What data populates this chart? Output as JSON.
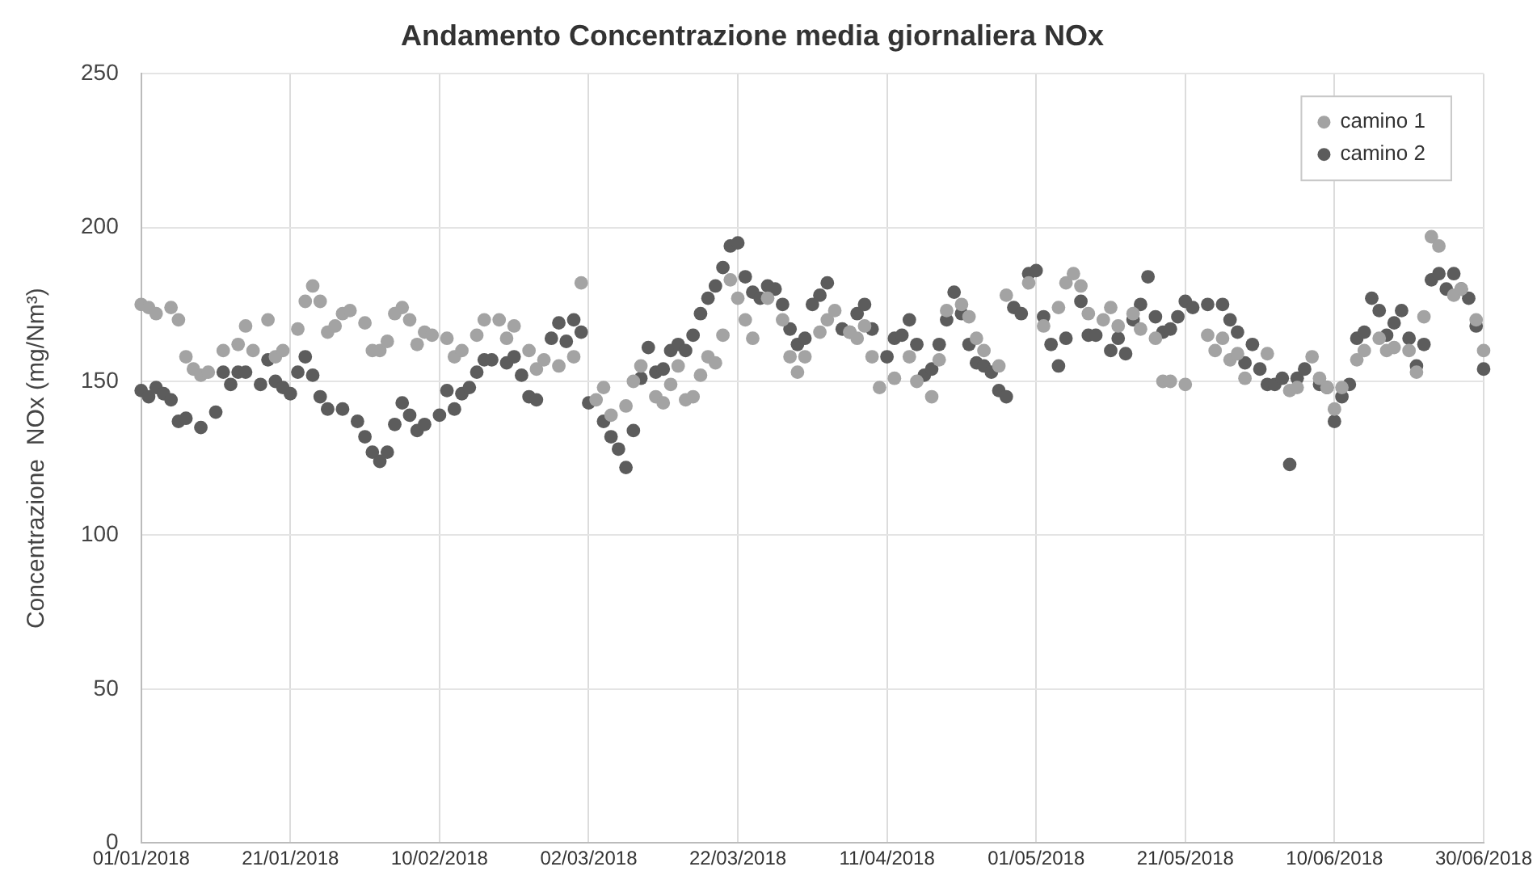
{
  "chart_data": {
    "type": "scatter",
    "title": "Andamento Concentrazione media giornaliera NOx",
    "ylabel": "Concentrazione  NOx (mg/Nm³)",
    "marker": "circle",
    "grid": true,
    "legend": "top right",
    "xlim": [
      "2018-01-01",
      "2018-06-30"
    ],
    "xticks": [
      {
        "value": "2018-01-01",
        "label": "01/01/2018"
      },
      {
        "value": "2018-01-21",
        "label": "21/01/2018"
      },
      {
        "value": "2018-02-10",
        "label": "10/02/2018"
      },
      {
        "value": "2018-03-02",
        "label": "02/03/2018"
      },
      {
        "value": "2018-03-22",
        "label": "22/03/2018"
      },
      {
        "value": "2018-04-11",
        "label": "11/04/2018"
      },
      {
        "value": "2018-05-01",
        "label": "01/05/2018"
      },
      {
        "value": "2018-05-21",
        "label": "21/05/2018"
      },
      {
        "value": "2018-06-10",
        "label": "10/06/2018"
      },
      {
        "value": "2018-06-30",
        "label": "30/06/2018"
      }
    ],
    "ylim": [
      0,
      250
    ],
    "yticks": [
      0,
      50,
      100,
      150,
      200,
      250
    ],
    "series": [
      {
        "name": "camino 1",
        "color": "#a3a3a3",
        "x": [
          "2018-01-01",
          "2018-01-02",
          "2018-01-03",
          "2018-01-05",
          "2018-01-06",
          "2018-01-07",
          "2018-01-08",
          "2018-01-09",
          "2018-01-10",
          "2018-01-12",
          "2018-01-14",
          "2018-01-15",
          "2018-01-16",
          "2018-01-18",
          "2018-01-19",
          "2018-01-20",
          "2018-01-22",
          "2018-01-23",
          "2018-01-24",
          "2018-01-25",
          "2018-01-26",
          "2018-01-27",
          "2018-01-28",
          "2018-01-29",
          "2018-01-31",
          "2018-02-01",
          "2018-02-02",
          "2018-02-03",
          "2018-02-04",
          "2018-02-05",
          "2018-02-06",
          "2018-02-07",
          "2018-02-08",
          "2018-02-09",
          "2018-02-11",
          "2018-02-12",
          "2018-02-13",
          "2018-02-15",
          "2018-02-16",
          "2018-02-18",
          "2018-02-19",
          "2018-02-20",
          "2018-02-22",
          "2018-02-23",
          "2018-02-24",
          "2018-02-26",
          "2018-02-28",
          "2018-03-01",
          "2018-03-03",
          "2018-03-04",
          "2018-03-05",
          "2018-03-07",
          "2018-03-08",
          "2018-03-09",
          "2018-03-11",
          "2018-03-12",
          "2018-03-13",
          "2018-03-14",
          "2018-03-15",
          "2018-03-16",
          "2018-03-17",
          "2018-03-18",
          "2018-03-19",
          "2018-03-20",
          "2018-03-21",
          "2018-03-22",
          "2018-03-23",
          "2018-03-24",
          "2018-03-26",
          "2018-03-28",
          "2018-03-29",
          "2018-03-30",
          "2018-03-31",
          "2018-04-02",
          "2018-04-03",
          "2018-04-04",
          "2018-04-06",
          "2018-04-07",
          "2018-04-08",
          "2018-04-09",
          "2018-04-10",
          "2018-04-12",
          "2018-04-14",
          "2018-04-15",
          "2018-04-17",
          "2018-04-18",
          "2018-04-19",
          "2018-04-21",
          "2018-04-22",
          "2018-04-23",
          "2018-04-24",
          "2018-04-26",
          "2018-04-27",
          "2018-04-30",
          "2018-05-02",
          "2018-05-04",
          "2018-05-05",
          "2018-05-06",
          "2018-05-07",
          "2018-05-08",
          "2018-05-10",
          "2018-05-11",
          "2018-05-12",
          "2018-05-14",
          "2018-05-15",
          "2018-05-17",
          "2018-05-18",
          "2018-05-19",
          "2018-05-21",
          "2018-05-24",
          "2018-05-25",
          "2018-05-26",
          "2018-05-27",
          "2018-05-28",
          "2018-05-29",
          "2018-06-01",
          "2018-06-04",
          "2018-06-05",
          "2018-06-07",
          "2018-06-08",
          "2018-06-09",
          "2018-06-10",
          "2018-06-11",
          "2018-06-13",
          "2018-06-14",
          "2018-06-16",
          "2018-06-17",
          "2018-06-18",
          "2018-06-20",
          "2018-06-21",
          "2018-06-22",
          "2018-06-23",
          "2018-06-24",
          "2018-06-26",
          "2018-06-27",
          "2018-06-29",
          "2018-06-30"
        ],
        "values": [
          175,
          174,
          172,
          174,
          170,
          158,
          154,
          152,
          153,
          160,
          162,
          168,
          160,
          170,
          158,
          160,
          167,
          176,
          181,
          176,
          166,
          168,
          172,
          173,
          169,
          160,
          160,
          163,
          172,
          174,
          170,
          162,
          166,
          165,
          164,
          158,
          160,
          165,
          170,
          170,
          164,
          168,
          160,
          154,
          157,
          155,
          158,
          182,
          144,
          148,
          139,
          142,
          150,
          155,
          145,
          143,
          149,
          155,
          144,
          145,
          152,
          158,
          156,
          165,
          183,
          177,
          170,
          164,
          177,
          170,
          158,
          153,
          158,
          166,
          170,
          173,
          166,
          164,
          168,
          158,
          148,
          151,
          158,
          150,
          145,
          157,
          173,
          175,
          171,
          164,
          160,
          155,
          178,
          182,
          168,
          174,
          182,
          185,
          181,
          172,
          170,
          174,
          168,
          172,
          167,
          164,
          150,
          150,
          149,
          165,
          160,
          164,
          157,
          159,
          151,
          159,
          147,
          148,
          158,
          151,
          148,
          141,
          148,
          157,
          160,
          164,
          160,
          161,
          160,
          153,
          171,
          197,
          194,
          178,
          180,
          170,
          160
        ]
      },
      {
        "name": "camino 2",
        "color": "#5c5c5c",
        "x": [
          "2018-01-01",
          "2018-01-02",
          "2018-01-03",
          "2018-01-04",
          "2018-01-05",
          "2018-01-06",
          "2018-01-07",
          "2018-01-09",
          "2018-01-11",
          "2018-01-12",
          "2018-01-13",
          "2018-01-14",
          "2018-01-15",
          "2018-01-17",
          "2018-01-18",
          "2018-01-19",
          "2018-01-20",
          "2018-01-21",
          "2018-01-22",
          "2018-01-23",
          "2018-01-24",
          "2018-01-25",
          "2018-01-26",
          "2018-01-28",
          "2018-01-30",
          "2018-01-31",
          "2018-02-01",
          "2018-02-02",
          "2018-02-03",
          "2018-02-04",
          "2018-02-05",
          "2018-02-06",
          "2018-02-07",
          "2018-02-08",
          "2018-02-10",
          "2018-02-11",
          "2018-02-12",
          "2018-02-13",
          "2018-02-14",
          "2018-02-15",
          "2018-02-16",
          "2018-02-17",
          "2018-02-19",
          "2018-02-20",
          "2018-02-21",
          "2018-02-22",
          "2018-02-23",
          "2018-02-25",
          "2018-02-26",
          "2018-02-27",
          "2018-02-28",
          "2018-03-01",
          "2018-03-02",
          "2018-03-04",
          "2018-03-05",
          "2018-03-06",
          "2018-03-07",
          "2018-03-08",
          "2018-03-09",
          "2018-03-10",
          "2018-03-11",
          "2018-03-12",
          "2018-03-13",
          "2018-03-14",
          "2018-03-15",
          "2018-03-16",
          "2018-03-17",
          "2018-03-18",
          "2018-03-19",
          "2018-03-20",
          "2018-03-21",
          "2018-03-22",
          "2018-03-23",
          "2018-03-24",
          "2018-03-25",
          "2018-03-26",
          "2018-03-27",
          "2018-03-28",
          "2018-03-29",
          "2018-03-30",
          "2018-03-31",
          "2018-04-01",
          "2018-04-02",
          "2018-04-03",
          "2018-04-05",
          "2018-04-06",
          "2018-04-07",
          "2018-04-08",
          "2018-04-09",
          "2018-04-11",
          "2018-04-12",
          "2018-04-13",
          "2018-04-14",
          "2018-04-15",
          "2018-04-16",
          "2018-04-17",
          "2018-04-18",
          "2018-04-19",
          "2018-04-20",
          "2018-04-21",
          "2018-04-22",
          "2018-04-23",
          "2018-04-24",
          "2018-04-25",
          "2018-04-26",
          "2018-04-27",
          "2018-04-28",
          "2018-04-29",
          "2018-04-30",
          "2018-05-01",
          "2018-05-02",
          "2018-05-03",
          "2018-05-04",
          "2018-05-05",
          "2018-05-07",
          "2018-05-08",
          "2018-05-09",
          "2018-05-11",
          "2018-05-12",
          "2018-05-13",
          "2018-05-14",
          "2018-05-15",
          "2018-05-16",
          "2018-05-17",
          "2018-05-18",
          "2018-05-19",
          "2018-05-20",
          "2018-05-21",
          "2018-05-22",
          "2018-05-24",
          "2018-05-26",
          "2018-05-27",
          "2018-05-28",
          "2018-05-29",
          "2018-05-30",
          "2018-05-31",
          "2018-06-01",
          "2018-06-02",
          "2018-06-03",
          "2018-06-04",
          "2018-06-05",
          "2018-06-06",
          "2018-06-08",
          "2018-06-09",
          "2018-06-10",
          "2018-06-11",
          "2018-06-12",
          "2018-06-13",
          "2018-06-14",
          "2018-06-15",
          "2018-06-16",
          "2018-06-17",
          "2018-06-18",
          "2018-06-19",
          "2018-06-20",
          "2018-06-21",
          "2018-06-22",
          "2018-06-23",
          "2018-06-24",
          "2018-06-25",
          "2018-06-26",
          "2018-06-27",
          "2018-06-28",
          "2018-06-29",
          "2018-06-30"
        ],
        "values": [
          147,
          145,
          148,
          146,
          144,
          137,
          138,
          135,
          140,
          153,
          149,
          153,
          153,
          149,
          157,
          150,
          148,
          146,
          153,
          158,
          152,
          145,
          141,
          141,
          137,
          132,
          127,
          124,
          127,
          136,
          143,
          139,
          134,
          136,
          139,
          147,
          141,
          146,
          148,
          153,
          157,
          157,
          156,
          158,
          152,
          145,
          144,
          164,
          169,
          163,
          170,
          166,
          143,
          137,
          132,
          128,
          122,
          134,
          151,
          161,
          153,
          154,
          160,
          162,
          160,
          165,
          172,
          177,
          181,
          187,
          194,
          195,
          184,
          179,
          177,
          181,
          180,
          175,
          167,
          162,
          164,
          175,
          178,
          182,
          167,
          166,
          172,
          175,
          167,
          158,
          164,
          165,
          170,
          162,
          152,
          154,
          162,
          170,
          179,
          172,
          162,
          156,
          155,
          153,
          147,
          145,
          174,
          172,
          185,
          186,
          171,
          162,
          155,
          164,
          176,
          165,
          165,
          160,
          164,
          159,
          170,
          175,
          184,
          171,
          166,
          167,
          171,
          176,
          174,
          175,
          175,
          170,
          166,
          156,
          162,
          154,
          149,
          149,
          151,
          123,
          151,
          154,
          149,
          148,
          137,
          145,
          149,
          164,
          166,
          177,
          173,
          165,
          169,
          173,
          164,
          155,
          162,
          183,
          185,
          180,
          185,
          180,
          177,
          168,
          154
        ]
      }
    ]
  }
}
